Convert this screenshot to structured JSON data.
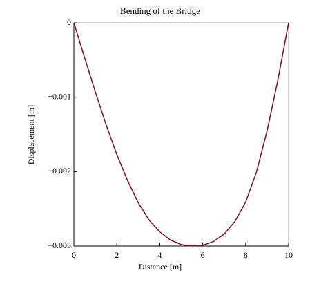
{
  "chart_data": {
    "type": "line",
    "title": "Bending of the Bridge",
    "x_label": "Distance [m]",
    "y_label": "Displacement [m]",
    "x": [
      0,
      0.5,
      1,
      1.5,
      2,
      2.5,
      3,
      3.5,
      4,
      4.5,
      5,
      5.5,
      6,
      6.5,
      7,
      7.5,
      8,
      8.5,
      9,
      9.5,
      10
    ],
    "series": [
      {
        "color": "#7a1020",
        "values": [
          0,
          -0.00047,
          -0.00093,
          -0.00137,
          -0.00177,
          -0.00212,
          -0.00242,
          -0.00265,
          -0.00281,
          -0.00292,
          -0.00298,
          -0.003,
          -0.00299,
          -0.00294,
          -0.00284,
          -0.00267,
          -0.00241,
          -0.00201,
          -0.00145,
          -0.00077,
          0
        ]
      }
    ],
    "xlim": [
      0,
      10
    ],
    "ylim": [
      -0.003,
      0
    ],
    "xticks": [
      0,
      2,
      4,
      6,
      8,
      10
    ],
    "yticks": [
      {
        "value": -0.003,
        "label": "−0.003"
      },
      {
        "value": -0.002,
        "label": "−0.002"
      },
      {
        "value": -0.001,
        "label": "−0.001"
      },
      0
    ]
  }
}
